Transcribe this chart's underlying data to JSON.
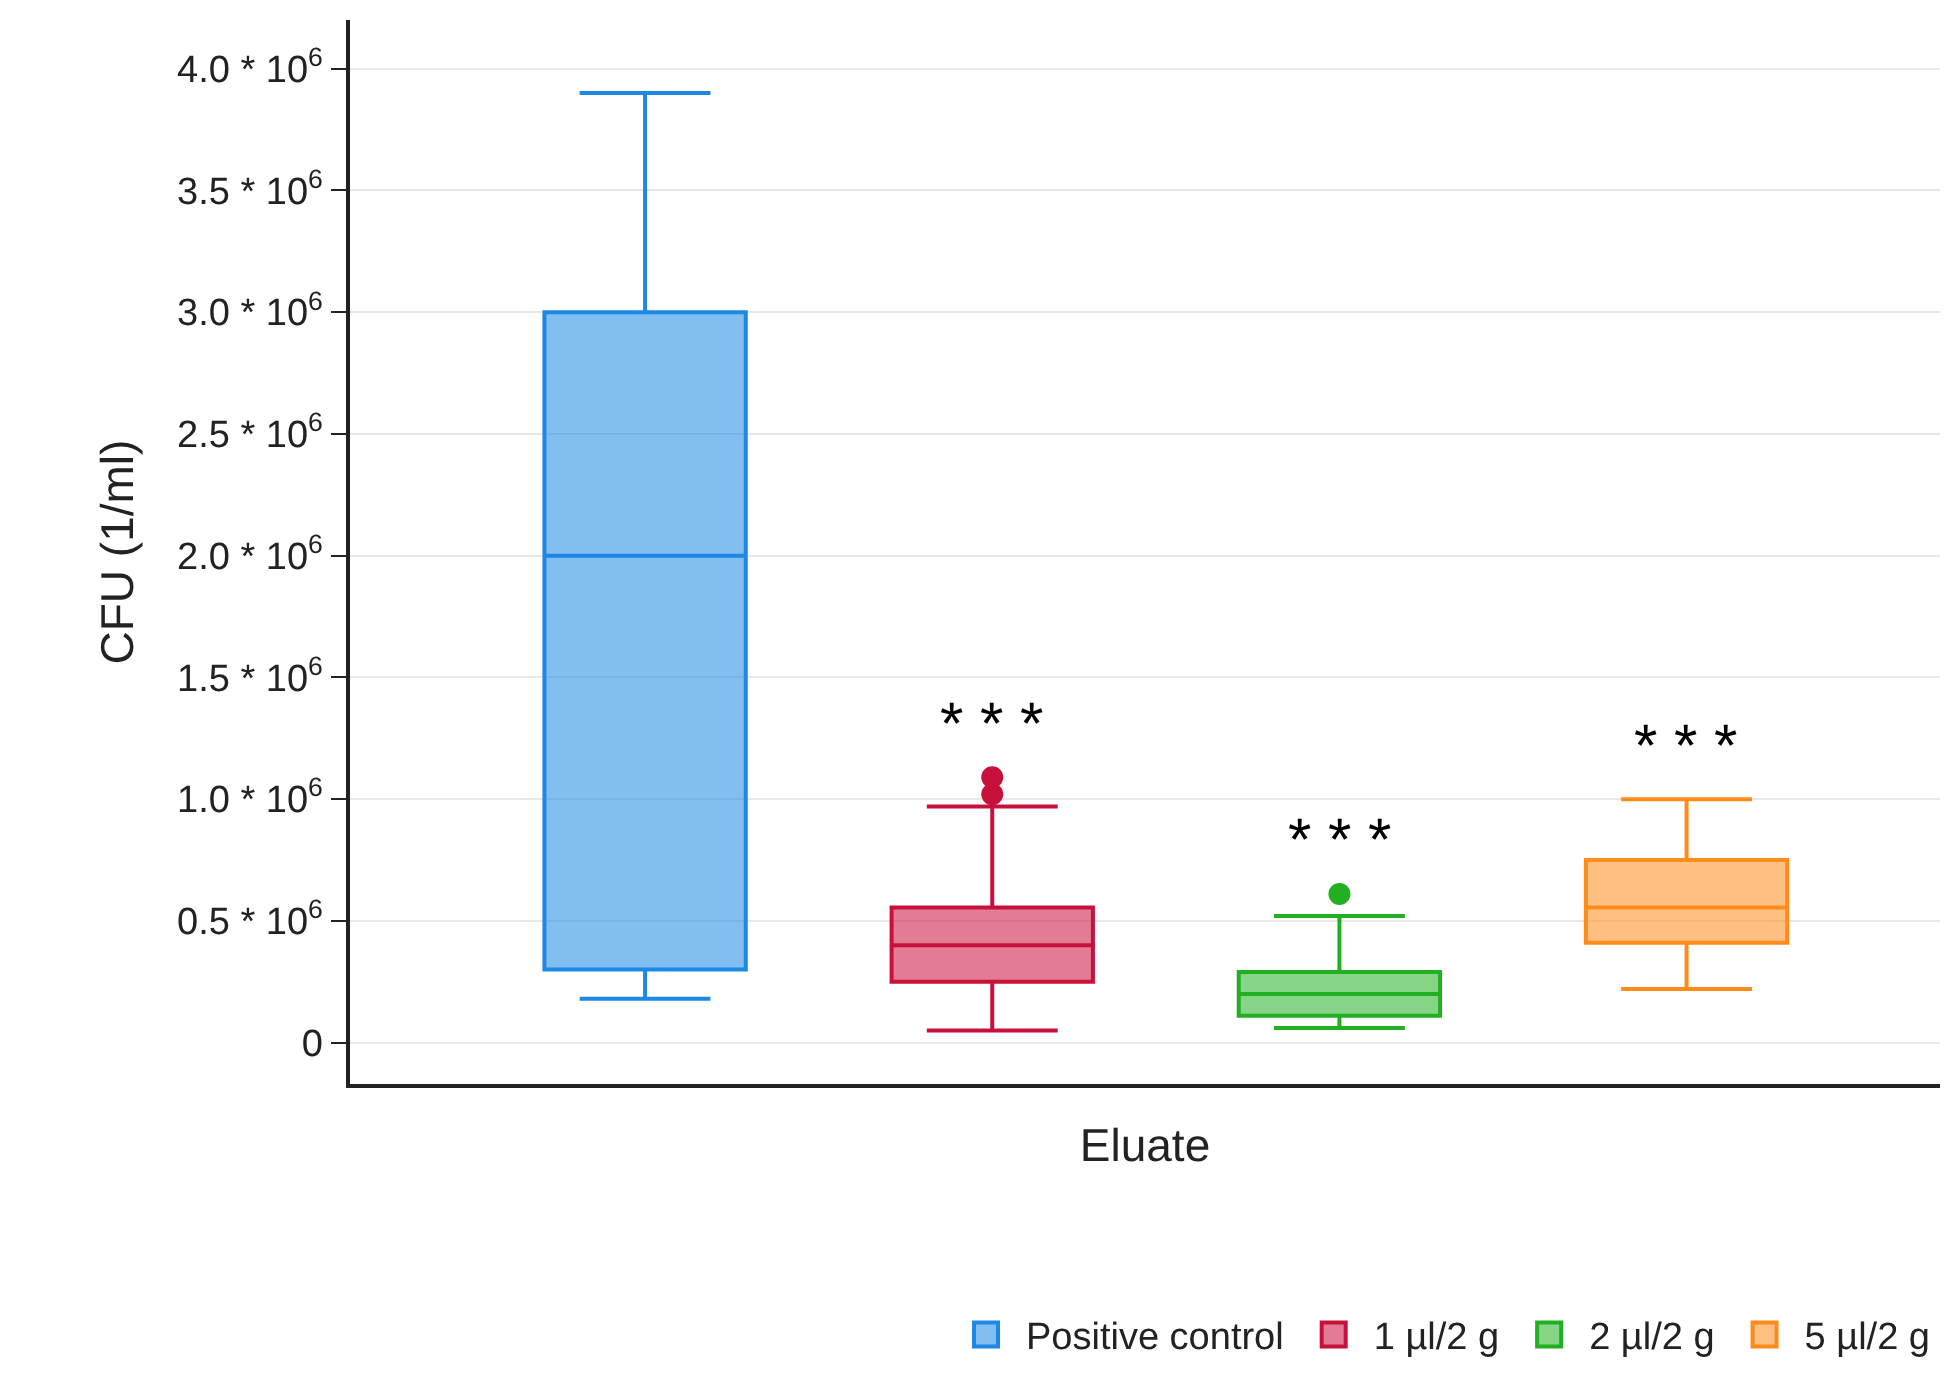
{
  "chart_data": {
    "type": "box",
    "xlabel": "Eluate",
    "ylabel": "CFU (1/ml)",
    "categories": [
      null,
      null,
      null,
      null
    ],
    "ylim": [
      -170000,
      4200000
    ],
    "yticks": [
      0,
      {
        "value": 500000,
        "label": "0.5 * 10$^{6}$"
      },
      {
        "value": 1000000,
        "label": "1.0 * 10$^{6}$"
      },
      {
        "value": 1500000,
        "label": "1.5 * 10$^{6}$"
      },
      {
        "value": 2000000,
        "label": "2.0 * 10$^{6}$"
      },
      {
        "value": 2500000,
        "label": "2.5 * 10$^{6}$"
      },
      {
        "value": 3000000,
        "label": "3.0 * 10$^{6}$"
      },
      {
        "value": 3500000,
        "label": "3.5 * 10$^{6}$"
      },
      {
        "value": 4000000,
        "label": "4.0 * 10$^{6}$"
      }
    ],
    "grid": "y",
    "legend": "bottom",
    "series": [
      {
        "name": "Positive control",
        "color": "#1e88e5",
        "boxes": [
          {
            "low": 180000,
            "q1": 300000,
            "median": 2000000,
            "q3": 3000000,
            "high": 3900000
          },
          null,
          null,
          null
        ]
      },
      {
        "name": "1 µl/2 g",
        "color": "#c8103c",
        "boxes": [
          null,
          {
            "low": 50000,
            "q1": 250000,
            "median": 400000,
            "q3": 555000,
            "high": 970000,
            "outliers": [
              1020000,
              1090000
            ]
          },
          null,
          null
        ]
      },
      {
        "name": "2 µl/2 g",
        "color": "#22b022",
        "boxes": [
          null,
          null,
          {
            "low": 60000,
            "q1": 110000,
            "median": 200000,
            "q3": 290000,
            "high": 520000,
            "outliers": [
              610000
            ]
          },
          null
        ]
      },
      {
        "name": "5 µl/2 g",
        "color": "#ff8c1a",
        "boxes": [
          null,
          null,
          null,
          {
            "low": 220000,
            "q1": 410000,
            "median": 555000,
            "q3": 750000,
            "high": 1000000
          }
        ]
      }
    ],
    "annotations": [
      "* * *",
      "* * *",
      "* * *"
    ]
  }
}
